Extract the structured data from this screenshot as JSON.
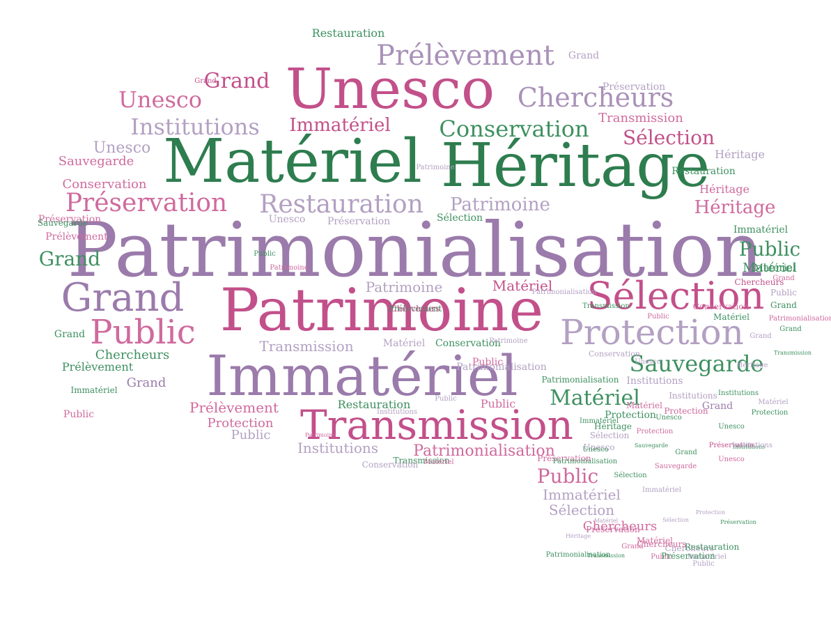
{
  "words": [
    {
      "text": "Patrimonialisation",
      "color": "#9b7bab"
    },
    {
      "text": "Matériel",
      "color": "#2e7d4f"
    },
    {
      "text": "Héritage",
      "color": "#2e7d4f"
    },
    {
      "text": "Unesco",
      "color": "#c2508a"
    },
    {
      "text": "Patrimoine",
      "color": "#c2508a"
    },
    {
      "text": "Immatériel",
      "color": "#9b7bab"
    },
    {
      "text": "Transmission",
      "color": "#c2508a"
    },
    {
      "text": "Grand",
      "color": "#9b7bab"
    },
    {
      "text": "Sélection",
      "color": "#c2508a"
    },
    {
      "text": "Protection",
      "color": "#b3a0c2"
    },
    {
      "text": "Prélèvement",
      "color": "#a991b8"
    },
    {
      "text": "Chercheurs",
      "color": "#a991b8"
    },
    {
      "text": "Conservation",
      "color": "#3e9060"
    },
    {
      "text": "Institutions",
      "color": "#b3a0c2"
    },
    {
      "text": "Restauration",
      "color": "#b3a0c2"
    },
    {
      "text": "Préservation",
      "color": "#cf6a9d"
    },
    {
      "text": "Public",
      "color": "#cf6a9d"
    },
    {
      "text": "Sauvegarde",
      "color": "#3e9060"
    },
    {
      "text": "Matériel",
      "color": "#3e9060"
    },
    {
      "text": "Immatériel",
      "color": "#c2508a"
    },
    {
      "text": "Unesco",
      "color": "#cf6a9d"
    },
    {
      "text": "Grand",
      "color": "#c2508a"
    },
    {
      "text": "Sélection",
      "color": "#c2508a"
    },
    {
      "text": "Public",
      "color": "#3e9060"
    },
    {
      "text": "Grand",
      "color": "#3e9060"
    },
    {
      "text": "Héritage",
      "color": "#cf6a9d"
    },
    {
      "text": "Patrimoine",
      "color": "#b3a0c2"
    },
    {
      "text": "Unesco",
      "color": "#b3a0c2"
    },
    {
      "text": "Sauvegarde",
      "color": "#cf6a9d"
    },
    {
      "text": "Conservation",
      "color": "#cf6a9d"
    },
    {
      "text": "Transmission",
      "color": "#b3a0c2"
    },
    {
      "text": "Public",
      "color": "#cf6a9d"
    },
    {
      "text": "Matériel",
      "color": "#3e9060"
    },
    {
      "text": "Restauration",
      "color": "#3e9060"
    },
    {
      "text": "Prélèvement",
      "color": "#cf6a9d"
    },
    {
      "text": "Patrimonialisation",
      "color": "#cf6a9d"
    },
    {
      "text": "Institutions",
      "color": "#b3a0c2"
    },
    {
      "text": "Immatériel",
      "color": "#b3a0c2"
    },
    {
      "text": "Sélection",
      "color": "#b3a0c2"
    },
    {
      "text": "Chercheurs",
      "color": "#cf6a9d"
    },
    {
      "text": "Chercheurs",
      "color": "#3e9060"
    },
    {
      "text": "Préservation",
      "color": "#cf6a9d"
    },
    {
      "text": "Prélèvement",
      "color": "#cf6a9d"
    },
    {
      "text": "Public",
      "color": "#b3a0c2"
    },
    {
      "text": "Protection",
      "color": "#cf6a9d"
    },
    {
      "text": "Institutions",
      "color": "#b3a0c2"
    },
    {
      "text": "Transmission",
      "color": "#cf6a9d"
    },
    {
      "text": "Matériel",
      "color": "#c2508a"
    },
    {
      "text": "Patrimoine",
      "color": "#b3a0c2"
    },
    {
      "text": "Public",
      "color": "#cf6a9d"
    },
    {
      "text": "Conservation",
      "color": "#3e9060"
    },
    {
      "text": "Grand",
      "color": "#9b7bab"
    },
    {
      "text": "Unesco",
      "color": "#b3a0c2"
    },
    {
      "text": "Préservation",
      "color": "#b3a0c2"
    },
    {
      "text": "Grand",
      "color": "#b3a0c2"
    },
    {
      "text": "Restauration",
      "color": "#3e9060"
    },
    {
      "text": "Héritage",
      "color": "#b3a0c2"
    },
    {
      "text": "Public",
      "color": "#b3a0c2"
    },
    {
      "text": "Matériel",
      "color": "#b3a0c2"
    },
    {
      "text": "Conservation",
      "color": "#b3a0c2"
    },
    {
      "text": "Patrimonialisation",
      "color": "#3e9060"
    },
    {
      "text": "Institutions",
      "color": "#b3a0c2"
    },
    {
      "text": "Transmission",
      "color": "#3e9060"
    },
    {
      "text": "Protection",
      "color": "#3e9060"
    },
    {
      "text": "Héritage",
      "color": "#3e9060"
    },
    {
      "text": "Sélection",
      "color": "#b3a0c2"
    },
    {
      "text": "Unesco",
      "color": "#b3a0c2"
    },
    {
      "text": "Unesco",
      "color": "#3e9060"
    },
    {
      "text": "Immatériel",
      "color": "#3e9060"
    },
    {
      "text": "Matériel",
      "color": "#3e9060"
    },
    {
      "text": "Grand",
      "color": "#3e9060"
    },
    {
      "text": "Préservation",
      "color": "#cf6a9d"
    },
    {
      "text": "Protection",
      "color": "#cf6a9d"
    },
    {
      "text": "Sauvegarde",
      "color": "#3e9060"
    },
    {
      "text": "Patrimonialisation",
      "color": "#cf6a9d"
    },
    {
      "text": "Immatériel",
      "color": "#3e9060"
    },
    {
      "text": "Public",
      "color": "#cf6a9d"
    },
    {
      "text": "Grand",
      "color": "#3e9060"
    },
    {
      "text": "Prélèvement",
      "color": "#3e9060"
    },
    {
      "text": "Patrimonialisation",
      "color": "#b3a0c2"
    },
    {
      "text": "Institutions",
      "color": "#3e9060"
    },
    {
      "text": "Grand",
      "color": "#9b7bab"
    },
    {
      "text": "Conservation",
      "color": "#b3a0c2"
    },
    {
      "text": "Préservation",
      "color": "#c2508a"
    },
    {
      "text": "Institutions",
      "color": "#b3a0c2"
    },
    {
      "text": "Unesco",
      "color": "#3e9060"
    },
    {
      "text": "Sauvegarde",
      "color": "#3e9060"
    },
    {
      "text": "Institutions",
      "color": "#3e9060"
    },
    {
      "text": "Immatériel",
      "color": "#b3a0c2"
    },
    {
      "text": "Héritage",
      "color": "#cf6a9d"
    },
    {
      "text": "Restauration",
      "color": "#3e9060"
    },
    {
      "text": "Matériel",
      "color": "#cf6a9d"
    },
    {
      "text": "Public",
      "color": "#b3a0c2"
    },
    {
      "text": "Grand",
      "color": "#3e9060"
    },
    {
      "text": "Patrimoine",
      "color": "#b3a0c2"
    },
    {
      "text": "Sélection",
      "color": "#3e9060"
    },
    {
      "text": "Unesco",
      "color": "#b3a0c2"
    },
    {
      "text": "Préservation",
      "color": "#b3a0c2"
    },
    {
      "text": "Public",
      "color": "#3e9060"
    },
    {
      "text": "Grand",
      "color": "#b3a0c2"
    },
    {
      "text": "Transmission",
      "color": "#3e9060"
    },
    {
      "text": "Chercheurs",
      "color": "#b3a0c2"
    },
    {
      "text": "Patrimonialisation",
      "color": "#3e9060"
    },
    {
      "text": "Public",
      "color": "#cf6a9d"
    },
    {
      "text": "Patrimoine",
      "color": "#b3a0c2"
    },
    {
      "text": "Matériel",
      "color": "#b3a0c2"
    },
    {
      "text": "Protection",
      "color": "#3e9060"
    },
    {
      "text": "Chercheurs",
      "color": "#c2508a"
    },
    {
      "text": "Grand",
      "color": "#c2508a"
    },
    {
      "text": "Patrimonialisation",
      "color": "#b3a0c2"
    },
    {
      "text": "Protection",
      "color": "#cf6a9d"
    },
    {
      "text": "Immatériel",
      "color": "#3e9060"
    },
    {
      "text": "Sauvegarde",
      "color": "#cf6a9d"
    },
    {
      "text": "Grand",
      "color": "#3e9060"
    },
    {
      "text": "Matériel",
      "color": "#cf6a9d"
    },
    {
      "text": "Public",
      "color": "#cf6a9d"
    },
    {
      "text": "Conservation",
      "color": "#cf6a9d"
    },
    {
      "text": "Matériel",
      "color": "#3e9060"
    },
    {
      "text": "Institutions",
      "color": "#b3a0c2"
    },
    {
      "text": "Unesco",
      "color": "#3e9060"
    },
    {
      "text": "Unesco",
      "color": "#cf6a9d"
    },
    {
      "text": "Transmission",
      "color": "#3e9060"
    },
    {
      "text": "Patrimoine",
      "color": "#cf6a9d"
    },
    {
      "text": "Héritage",
      "color": "#b3a0c2"
    },
    {
      "text": "Sélection",
      "color": "#3e9060"
    },
    {
      "text": "Patrimoine",
      "color": "#cf6a9d"
    },
    {
      "text": "Grand",
      "color": "#cf6a9d"
    },
    {
      "text": "Préservation",
      "color": "#cf6a9d"
    },
    {
      "text": "Matériel",
      "color": "#cf6a9d"
    },
    {
      "text": "Restauration",
      "color": "#3e9060"
    },
    {
      "text": "Héritage",
      "color": "#b3a0c2"
    },
    {
      "text": "Public",
      "color": "#b3a0c2"
    },
    {
      "text": "Patrimonialisation",
      "color": "#3e9060"
    },
    {
      "text": "Transmission",
      "color": "#3e9060"
    },
    {
      "text": "Protection",
      "color": "#b3a0c2"
    },
    {
      "text": "Préservation",
      "color": "#3e9060"
    },
    {
      "text": "Matériel",
      "color": "#b3a0c2"
    },
    {
      "text": "Public",
      "color": "#cf6a9d"
    },
    {
      "text": "Grand",
      "color": "#cf6a9d"
    },
    {
      "text": "Immatériel",
      "color": "#b3a0c2"
    },
    {
      "text": "Sélection",
      "color": "#b3a0c2"
    },
    {
      "text": "Chercheurs",
      "color": "#cf6a9d"
    },
    {
      "text": "Préservation",
      "color": "#3e9060"
    },
    {
      "text": "Prélèvement",
      "color": "#3e9060"
    },
    {
      "text": "Chercheurs",
      "color": "#c2508a"
    }
  ]
}
